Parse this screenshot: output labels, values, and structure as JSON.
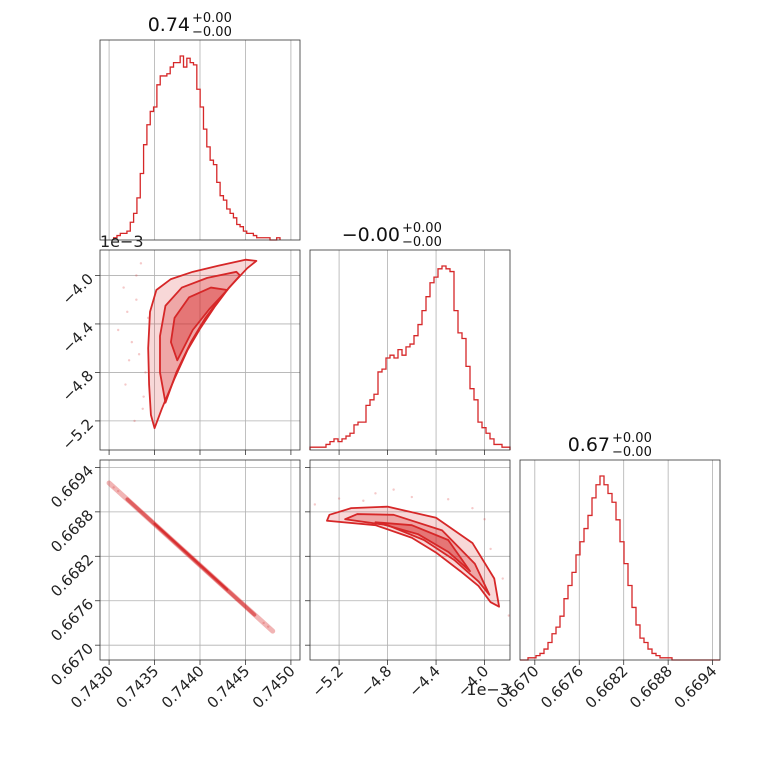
{
  "chart_data": {
    "type": "corner",
    "color": "#d62728",
    "parameters": [
      {
        "title": {
          "median": "0.74",
          "plus": "+0.00",
          "minus": "−0.00"
        },
        "range": [
          0.7429,
          0.7451
        ],
        "ticks": [
          0.743,
          0.7435,
          0.744,
          0.7445,
          0.745
        ],
        "tick_labels": [
          "0.7430",
          "0.7435",
          "0.7440",
          "0.7445",
          "0.7450"
        ],
        "offset_label": "",
        "hist": {
          "start": 0.74305,
          "bin_width": 3.66e-05,
          "counts": [
            1,
            2,
            3,
            3,
            4,
            8,
            12,
            19,
            30,
            43,
            52,
            58,
            60,
            70,
            74,
            74,
            75,
            78,
            80,
            80,
            83,
            78,
            82,
            80,
            79,
            68,
            60,
            50,
            42,
            36,
            34,
            26,
            20,
            18,
            14,
            12,
            10,
            7,
            6,
            4,
            3,
            3,
            2,
            1,
            1,
            1,
            1,
            0,
            0,
            1
          ]
        }
      },
      {
        "title": {
          "median": "−0.00",
          "plus": "+0.00",
          "minus": "−0.00"
        },
        "range": [
          -5.44,
          -3.79
        ],
        "ticks": [
          -5.2,
          -4.8,
          -4.4,
          -4.0
        ],
        "tick_labels": [
          "−5.2",
          "−4.8",
          "−4.4",
          "−4.0"
        ],
        "offset_label": "1e−3",
        "hist": {
          "start": -5.44,
          "bin_width": 0.033,
          "counts": [
            1,
            1,
            1,
            1,
            2,
            3,
            4,
            3,
            4,
            5,
            6,
            9,
            10,
            10,
            16,
            18,
            20,
            28,
            29,
            33,
            34,
            33,
            36,
            34,
            37,
            38,
            41,
            45,
            50,
            55,
            60,
            62,
            65,
            66,
            65,
            64,
            50,
            42,
            40,
            30,
            22,
            18,
            10,
            8,
            6,
            4,
            2,
            2,
            1,
            1
          ]
        }
      },
      {
        "title": {
          "median": "0.67",
          "plus": "+0.00",
          "minus": "−0.00"
        },
        "range": [
          0.6668,
          0.6695
        ],
        "ticks": [
          0.667,
          0.6676,
          0.6682,
          0.6688,
          0.6694
        ],
        "tick_labels": [
          "0.6670",
          "0.6676",
          "0.6682",
          "0.6688",
          "0.6694"
        ],
        "offset_label": "",
        "hist": {
          "start": 0.6668,
          "bin_width": 5.4e-05,
          "counts": [
            0,
            0,
            1,
            1,
            2,
            3,
            5,
            8,
            12,
            15,
            20,
            28,
            34,
            40,
            48,
            54,
            60,
            66,
            74,
            80,
            84,
            80,
            76,
            72,
            64,
            54,
            44,
            34,
            24,
            16,
            10,
            8,
            5,
            3,
            2,
            1,
            1,
            1,
            0,
            0,
            0,
            0,
            0,
            0,
            0,
            0,
            0,
            0,
            0,
            0
          ]
        }
      }
    ],
    "pairs": [
      {
        "x_param": 0,
        "y_param": 1,
        "contours": [
          [
            [
              0.7435,
              -5.26
            ],
            [
              0.74358,
              -5.1
            ],
            [
              0.74372,
              -4.85
            ],
            [
              0.74386,
              -4.62
            ],
            [
              0.744,
              -4.44
            ],
            [
              0.74416,
              -4.26
            ],
            [
              0.74432,
              -4.1
            ],
            [
              0.74452,
              -3.94
            ],
            [
              0.74462,
              -3.88
            ],
            [
              0.7445,
              -3.87
            ],
            [
              0.7442,
              -3.92
            ],
            [
              0.74392,
              -3.97
            ],
            [
              0.74368,
              -4.03
            ],
            [
              0.74352,
              -4.12
            ],
            [
              0.74345,
              -4.3
            ],
            [
              0.74343,
              -4.6
            ],
            [
              0.74344,
              -4.9
            ],
            [
              0.74346,
              -5.15
            ]
          ],
          [
            [
              0.74362,
              -5.05
            ],
            [
              0.74374,
              -4.8
            ],
            [
              0.7439,
              -4.55
            ],
            [
              0.74406,
              -4.35
            ],
            [
              0.74424,
              -4.17
            ],
            [
              0.74444,
              -4.0
            ],
            [
              0.7444,
              -3.97
            ],
            [
              0.74408,
              -4.02
            ],
            [
              0.7438,
              -4.1
            ],
            [
              0.74362,
              -4.25
            ],
            [
              0.74356,
              -4.5
            ],
            [
              0.74356,
              -4.8
            ]
          ],
          [
            [
              0.74375,
              -4.7
            ],
            [
              0.74392,
              -4.45
            ],
            [
              0.7441,
              -4.28
            ],
            [
              0.7443,
              -4.12
            ],
            [
              0.74412,
              -4.1
            ],
            [
              0.74388,
              -4.18
            ],
            [
              0.74372,
              -4.35
            ],
            [
              0.74368,
              -4.55
            ]
          ]
        ],
        "scatter": [
          [
            0.7431,
            -4.45
          ],
          [
            0.74322,
            -4.7
          ],
          [
            0.7433,
            -4.2
          ],
          [
            0.74338,
            -5.0
          ],
          [
            0.74318,
            -4.9
          ],
          [
            0.74335,
            -3.9
          ],
          [
            0.74316,
            -4.1
          ],
          [
            0.74328,
            -5.2
          ],
          [
            0.7434,
            -4.8
          ],
          [
            0.74325,
            -4.55
          ],
          [
            0.74343,
            -4.35
          ],
          [
            0.7433,
            -4.0
          ],
          [
            0.7432,
            -4.3
          ],
          [
            0.74337,
            -5.1
          ],
          [
            0.74333,
            -4.65
          ]
        ]
      },
      {
        "x_param": 0,
        "y_param": 2,
        "contours": [
          [
            [
              0.743,
              0.66919
            ],
            [
              0.7448,
              0.66719
            ]
          ],
          [
            [
              0.7432,
              0.66897
            ],
            [
              0.7446,
              0.66741
            ]
          ],
          [
            [
              0.7435,
              0.66864
            ],
            [
              0.7443,
              0.66775
            ]
          ]
        ],
        "scatter": [
          [
            0.7431,
            0.66908
          ],
          [
            0.7447,
            0.6673
          ],
          [
            0.74475,
            0.66725
          ],
          [
            0.74305,
            0.66913
          ]
        ]
      },
      {
        "x_param": 1,
        "y_param": 2,
        "contours": [
          [
            [
              -5.3,
              0.66868
            ],
            [
              -4.9,
              0.66862
            ],
            [
              -4.6,
              0.66845
            ],
            [
              -4.4,
              0.66825
            ],
            [
              -4.2,
              0.668
            ],
            [
              -4.05,
              0.6678
            ],
            [
              -3.95,
              0.66758
            ],
            [
              -3.88,
              0.66752
            ],
            [
              -3.92,
              0.6679
            ],
            [
              -4.1,
              0.66838
            ],
            [
              -4.4,
              0.66872
            ],
            [
              -4.8,
              0.66887
            ],
            [
              -5.1,
              0.66885
            ],
            [
              -5.28,
              0.66876
            ]
          ],
          [
            [
              -5.15,
              0.6687
            ],
            [
              -4.8,
              0.66862
            ],
            [
              -4.5,
              0.66842
            ],
            [
              -4.25,
              0.66815
            ],
            [
              -4.05,
              0.66786
            ],
            [
              -3.96,
              0.66768
            ],
            [
              -4.08,
              0.6681
            ],
            [
              -4.35,
              0.66855
            ],
            [
              -4.75,
              0.66876
            ],
            [
              -5.05,
              0.66877
            ]
          ],
          [
            [
              -4.9,
              0.66866
            ],
            [
              -4.55,
              0.6685
            ],
            [
              -4.3,
              0.66826
            ],
            [
              -4.12,
              0.668
            ],
            [
              -4.3,
              0.66842
            ],
            [
              -4.6,
              0.66862
            ]
          ]
        ],
        "scatter": [
          [
            -5.2,
            0.66898
          ],
          [
            -4.9,
            0.66905
          ],
          [
            -4.6,
            0.669
          ],
          [
            -4.3,
            0.66897
          ],
          [
            -4.0,
            0.6687
          ],
          [
            -3.85,
            0.6679
          ],
          [
            -3.8,
            0.6674
          ],
          [
            -5.4,
            0.6689
          ],
          [
            -4.75,
            0.6691
          ],
          [
            -4.1,
            0.66885
          ],
          [
            -3.95,
            0.6683
          ],
          [
            -5.0,
            0.66895
          ]
        ]
      }
    ]
  }
}
